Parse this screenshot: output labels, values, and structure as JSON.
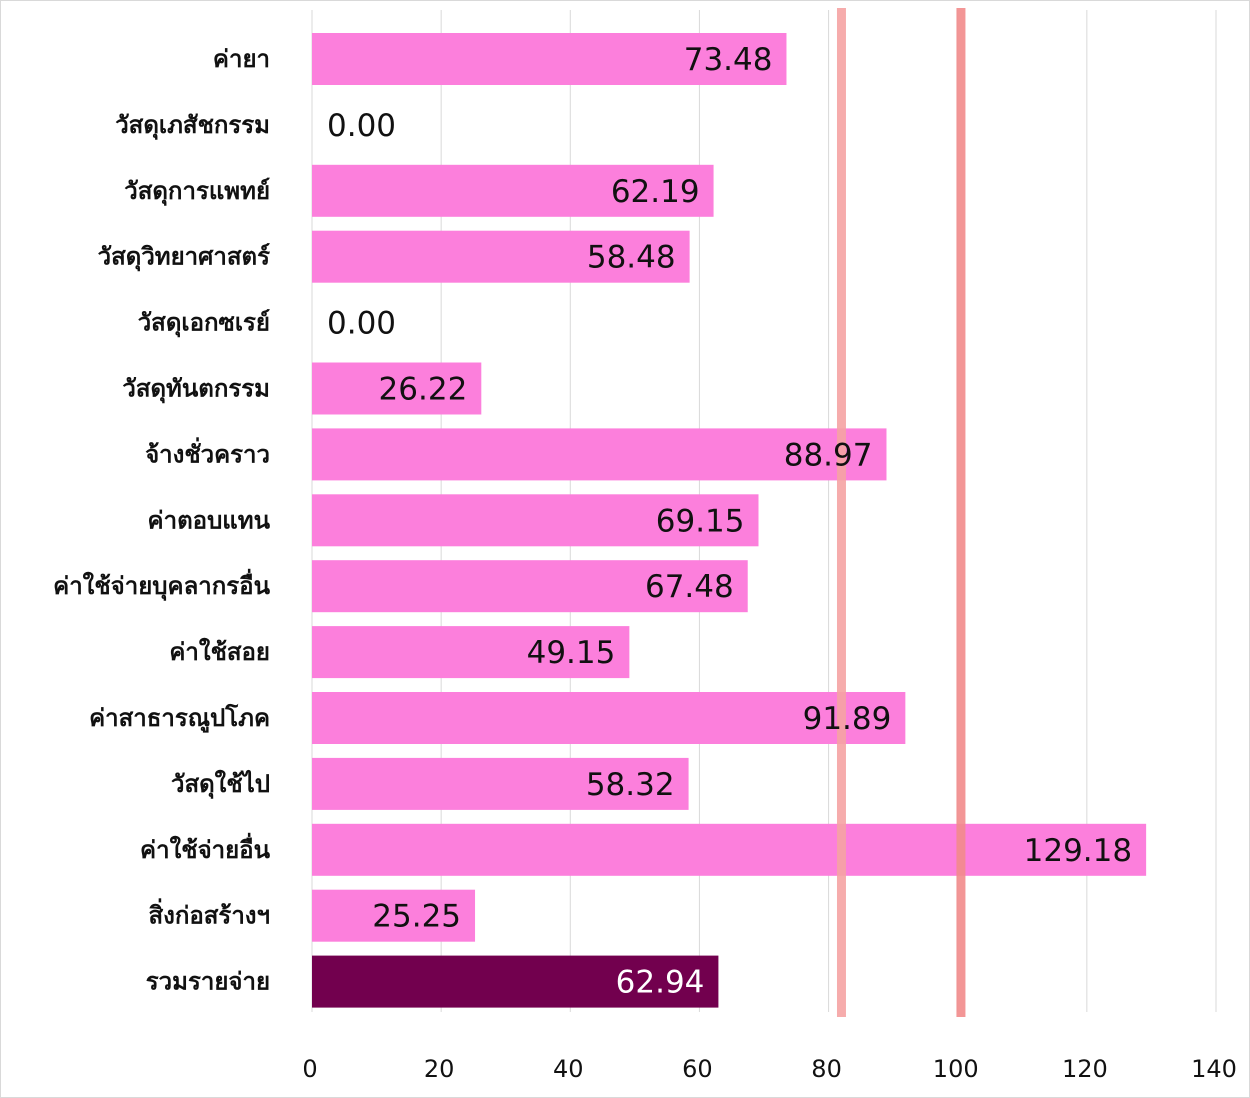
{
  "chart_data": {
    "type": "bar",
    "orientation": "horizontal",
    "categories": [
      "ค่ายา",
      "วัสดุเภสัชกรรม",
      "วัสดุการแพทย์",
      "วัสดุวิทยาศาสตร์",
      "วัสดุเอกซเรย์",
      "วัสดุทันตกรรม",
      "จ้างชั่วคราว",
      "ค่าตอบแทน",
      "ค่าใช้จ่ายบุคลากรอื่น",
      "ค่าใช้สอย",
      "ค่าสาธารณูปโภค",
      "วัสดุใช้ไป",
      "ค่าใช้จ่ายอื่น",
      "สิ่งก่อสร้างฯ",
      "รวมรายจ่าย"
    ],
    "values": [
      73.48,
      0.0,
      62.19,
      58.48,
      0.0,
      26.22,
      88.97,
      69.15,
      67.48,
      49.15,
      91.89,
      58.32,
      129.18,
      25.25,
      62.94
    ],
    "value_labels": [
      "73.48",
      "0.00",
      "62.19",
      "58.48",
      "0.00",
      "26.22",
      "88.97",
      "69.15",
      "67.48",
      "49.15",
      "91.89",
      "58.32",
      "129.18",
      "25.25",
      "62.94"
    ],
    "highlight_index": 14,
    "xlim": [
      0,
      140
    ],
    "x_ticks": [
      0,
      20,
      40,
      60,
      80,
      100,
      120,
      140
    ],
    "x_tick_labels": [
      "0",
      "20",
      "40",
      "60",
      "80",
      "100",
      "120",
      "140"
    ],
    "reference_lines": [
      82,
      100.5
    ],
    "grid": "vertical",
    "colors": {
      "bar": "#fc7fdc",
      "bar_highlight": "#72004e",
      "reference_line_1": "#f5a3a3",
      "reference_line_2": "#f28b8b",
      "grid": "#d9d9d9",
      "value_text": "#111111",
      "value_text_highlight": "#ffffff"
    }
  }
}
